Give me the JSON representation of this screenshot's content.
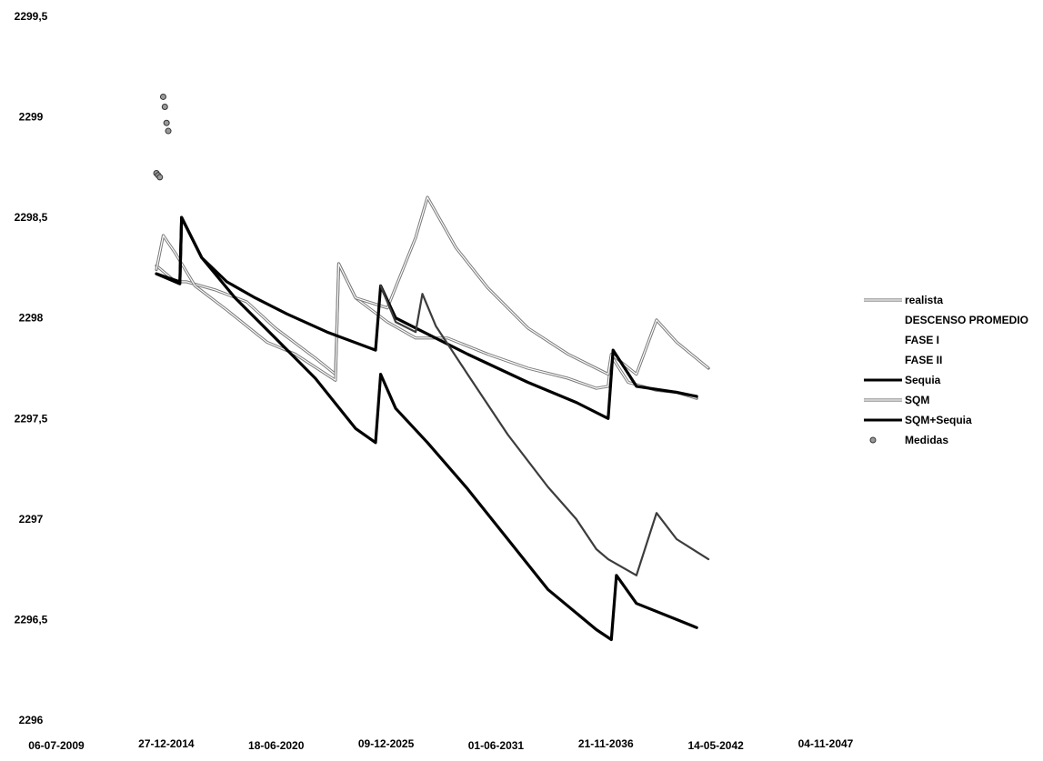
{
  "chart_data": {
    "type": "line",
    "title": "",
    "xlabel": "",
    "ylabel": "",
    "ylim": [
      2296,
      2299.5
    ],
    "xlim": [
      "2009-07-06",
      "2047-11-04"
    ],
    "y_ticks": [
      "2296",
      "2296,5",
      "2297",
      "2297,5",
      "2298",
      "2298,5",
      "2299",
      "2299,5"
    ],
    "x_ticks": [
      "06-07-2009",
      "27-12-2014",
      "18-06-2020",
      "09-12-2025",
      "01-06-2031",
      "21-11-2036",
      "14-05-2042",
      "04-11-2047"
    ],
    "grid": false,
    "legend_position": "right",
    "legend": [
      "realista",
      "DESCENSO PROMEDIO",
      "FASE I",
      "FASE II",
      "Sequia",
      "SQM",
      "SQM+Sequia",
      "Medidas"
    ],
    "series": [
      {
        "name": "realista",
        "color": "#7a7a7a",
        "style": "double",
        "points": [
          [
            "2014-07-01",
            2298.26
          ],
          [
            "2015-06-15",
            2298.18
          ],
          [
            "2016-01-01",
            2298.18
          ],
          [
            "2017-06-01",
            2298.14
          ],
          [
            "2019-01-01",
            2298.08
          ],
          [
            "2020-06-01",
            2297.95
          ],
          [
            "2022-06-01",
            2297.8
          ],
          [
            "2023-06-01",
            2297.72
          ],
          [
            "2023-08-01",
            2298.27
          ],
          [
            "2024-06-01",
            2298.1
          ],
          [
            "2026-01-01",
            2297.98
          ],
          [
            "2027-06-01",
            2297.9
          ],
          [
            "2029-01-01",
            2297.9
          ],
          [
            "2031-01-01",
            2297.82
          ],
          [
            "2033-01-01",
            2297.75
          ],
          [
            "2035-01-01",
            2297.7
          ],
          [
            "2036-06-01",
            2297.65
          ],
          [
            "2037-01-01",
            2297.66
          ],
          [
            "2037-03-01",
            2297.81
          ],
          [
            "2038-01-01",
            2297.68
          ],
          [
            "2039-06-01",
            2297.64
          ],
          [
            "2040-06-01",
            2297.63
          ],
          [
            "2041-06-01",
            2297.6
          ]
        ]
      },
      {
        "name": "SQM",
        "color": "#7a7a7a",
        "style": "double",
        "points": [
          [
            "2014-07-01",
            2298.24
          ],
          [
            "2014-11-01",
            2298.41
          ],
          [
            "2015-06-15",
            2298.32
          ],
          [
            "2016-06-01",
            2298.16
          ],
          [
            "2018-01-01",
            2298.04
          ],
          [
            "2020-01-01",
            2297.88
          ],
          [
            "2021-06-01",
            2297.82
          ],
          [
            "2023-06-01",
            2297.69
          ],
          [
            "2023-08-01",
            2298.27
          ],
          [
            "2024-06-01",
            2298.1
          ],
          [
            "2026-01-01",
            2298.05
          ],
          [
            "2027-06-01",
            2298.4
          ],
          [
            "2028-01-01",
            2298.6
          ],
          [
            "2029-06-01",
            2298.35
          ],
          [
            "2031-01-01",
            2298.15
          ],
          [
            "2033-01-01",
            2297.95
          ],
          [
            "2035-01-01",
            2297.82
          ],
          [
            "2037-01-01",
            2297.72
          ],
          [
            "2037-03-01",
            2297.82
          ],
          [
            "2038-06-01",
            2297.72
          ],
          [
            "2039-06-01",
            2297.99
          ],
          [
            "2040-06-01",
            2297.88
          ],
          [
            "2042-01-01",
            2297.75
          ]
        ]
      },
      {
        "name": "Sequia",
        "color": "#000000",
        "style": "solid",
        "points": [
          [
            "2014-07-01",
            2298.22
          ],
          [
            "2015-09-01",
            2298.17
          ],
          [
            "2015-10-01",
            2298.5
          ],
          [
            "2016-10-01",
            2298.3
          ],
          [
            "2018-01-01",
            2298.18
          ],
          [
            "2019-06-01",
            2298.1
          ],
          [
            "2021-01-01",
            2298.02
          ],
          [
            "2023-01-01",
            2297.93
          ],
          [
            "2025-06-01",
            2297.84
          ],
          [
            "2025-09-01",
            2298.16
          ],
          [
            "2026-06-01",
            2298.0
          ],
          [
            "2027-06-01",
            2297.95
          ],
          [
            "2030-01-01",
            2297.82
          ],
          [
            "2033-01-01",
            2297.68
          ],
          [
            "2035-06-01",
            2297.58
          ],
          [
            "2037-01-01",
            2297.5
          ],
          [
            "2037-04-01",
            2297.84
          ],
          [
            "2038-06-01",
            2297.66
          ],
          [
            "2040-06-01",
            2297.63
          ],
          [
            "2041-06-01",
            2297.61
          ]
        ]
      },
      {
        "name": "SQM+Sequia",
        "color": "#000000",
        "style": "solid",
        "points": [
          [
            "2014-07-01",
            2298.22
          ],
          [
            "2015-09-01",
            2298.18
          ],
          [
            "2015-10-01",
            2298.5
          ],
          [
            "2016-10-01",
            2298.3
          ],
          [
            "2018-06-01",
            2298.1
          ],
          [
            "2020-06-01",
            2297.9
          ],
          [
            "2022-06-01",
            2297.7
          ],
          [
            "2024-06-01",
            2297.45
          ],
          [
            "2025-06-01",
            2297.38
          ],
          [
            "2025-09-01",
            2297.72
          ],
          [
            "2026-06-01",
            2297.55
          ],
          [
            "2028-01-01",
            2297.38
          ],
          [
            "2030-01-01",
            2297.15
          ],
          [
            "2032-01-01",
            2296.9
          ],
          [
            "2034-01-01",
            2296.65
          ],
          [
            "2036-06-01",
            2296.45
          ],
          [
            "2037-03-01",
            2296.4
          ],
          [
            "2037-06-01",
            2296.72
          ],
          [
            "2038-06-01",
            2296.58
          ],
          [
            "2040-06-01",
            2296.5
          ],
          [
            "2041-06-01",
            2296.46
          ]
        ]
      },
      {
        "name": "SQM+Sequia",
        "color": "#3c3c3c",
        "style": "solid-thin",
        "points": [
          [
            "2025-09-01",
            2298.16
          ],
          [
            "2026-06-01",
            2297.98
          ],
          [
            "2027-06-01",
            2297.93
          ],
          [
            "2027-10-01",
            2298.12
          ],
          [
            "2028-06-01",
            2297.96
          ],
          [
            "2030-01-01",
            2297.72
          ],
          [
            "2032-01-01",
            2297.42
          ],
          [
            "2034-01-01",
            2297.16
          ],
          [
            "2035-06-01",
            2297.0
          ],
          [
            "2036-06-01",
            2296.85
          ],
          [
            "2037-01-01",
            2296.8
          ],
          [
            "2038-06-01",
            2296.72
          ],
          [
            "2039-06-01",
            2297.03
          ],
          [
            "2040-06-01",
            2296.9
          ],
          [
            "2042-01-01",
            2296.8
          ]
        ]
      }
    ],
    "medidas": [
      [
        "2014-07-01",
        2298.72
      ],
      [
        "2014-08-01",
        2298.71
      ],
      [
        "2014-09-01",
        2298.7
      ],
      [
        "2014-11-01",
        2299.1
      ],
      [
        "2014-12-01",
        2299.05
      ],
      [
        "2015-01-01",
        2298.97
      ],
      [
        "2015-02-01",
        2298.93
      ]
    ]
  }
}
